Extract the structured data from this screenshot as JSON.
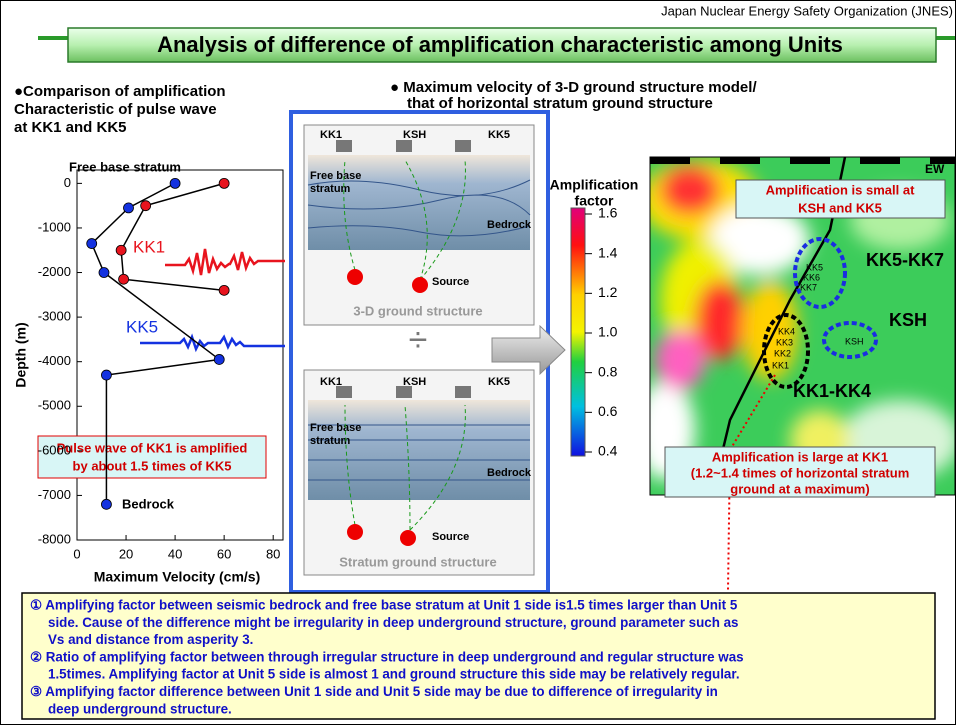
{
  "header": {
    "organization": "Japan Nuclear Energy Safety Organization (JNES)",
    "title": "Analysis of difference of amplification characteristic among Units"
  },
  "left_heading": [
    "●Comparison of amplification",
    "Characteristic of pulse wave",
    "at KK1 and KK5"
  ],
  "chart_data": {
    "type": "line",
    "xlabel": "Maximum Velocity (cm/s)",
    "ylabel": "Depth (m)",
    "xlim": [
      0,
      84
    ],
    "ylim": [
      -8000,
      300
    ],
    "xticks": [
      0,
      20,
      40,
      60,
      80
    ],
    "yticks": [
      0,
      -1000,
      -2000,
      -3000,
      -4000,
      -5000,
      -6000,
      -7000,
      -8000
    ],
    "line_color": "#000000",
    "series": [
      {
        "name": "KK1",
        "color": "#e8141e",
        "x": [
          60,
          28,
          18,
          19,
          60
        ],
        "values": [
          0,
          -500,
          -1500,
          -2150,
          -2400
        ]
      },
      {
        "name": "KK5",
        "color": "#1432e0",
        "x": [
          40,
          21,
          6,
          11,
          58,
          12,
          12
        ],
        "values": [
          0,
          -550,
          -1350,
          -2000,
          -3950,
          -4300,
          -7200
        ]
      }
    ],
    "annotations": {
      "top": "Free base stratum",
      "bottom": "Bedrock",
      "note": [
        "Pulse wave of KK1 is amplified",
        "by about 1.5 times of KK5"
      ]
    }
  },
  "middle_heading": [
    "● Maximum velocity of 3-D ground structure model/",
    "that of horizontal stratum ground structure"
  ],
  "diagram_top": {
    "units": [
      "KK1",
      "KSH",
      "KK5"
    ],
    "free_base": [
      "Free base",
      "stratum"
    ],
    "bedrock": "Bedrock",
    "source": "Source",
    "caption": "3-D ground structure"
  },
  "diagram_bottom": {
    "units": [
      "KK1",
      "KSH",
      "KK5"
    ],
    "free_base": [
      "Free base",
      "stratum"
    ],
    "bedrock": "Bedrock",
    "source": "Source",
    "caption": "Stratum ground structure"
  },
  "colorbar": {
    "title": [
      "Amplification",
      "factor"
    ],
    "ticks": [
      "1.6",
      "1.4",
      "1.2",
      "1.0",
      "0.8",
      "0.6",
      "0.4"
    ]
  },
  "map": {
    "direction": "EW",
    "callout_top": [
      "Amplification is small at",
      "KSH and KK5"
    ],
    "group_north": "KK5-KK7",
    "group_ksh": "KSH",
    "group_south": "KK1-KK4",
    "units_north": [
      "KK5",
      "KK6",
      "KK7"
    ],
    "units_south": [
      "KK4",
      "KK3",
      "KK2",
      "KK1"
    ],
    "unit_ksh": "KSH",
    "callout_bottom": [
      "Amplification is large at KK1",
      "(1.2~1.4 times of horizontal stratum",
      "ground at a maximum)"
    ]
  },
  "notes": [
    "① Amplifying factor between seismic bedrock and free base stratum at Unit 1 side is1.5 times larger than Unit 5",
    "side. Cause of the difference might be irregularity in deep underground structure, ground parameter such as",
    "Vs and distance from asperity 3.",
    "② Ratio of amplifying factor between through irregular structure in deep underground and regular structure was",
    "1.5times. Amplifying factor at Unit 5 side is almost 1 and ground structure this side may be relatively regular.",
    "③ Amplifying factor difference between Unit 1 side and Unit 5 side may be due to  difference of irregularity in",
    "deep underground structure."
  ]
}
